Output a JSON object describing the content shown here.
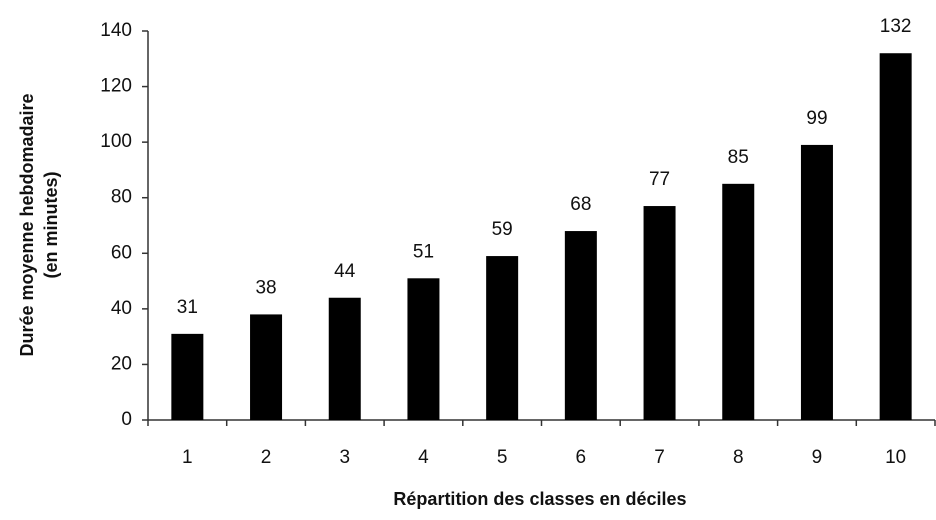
{
  "chart_data": {
    "type": "bar",
    "xlabel": "Répartition des classes en déciles",
    "ylabel": [
      "Durée moyenne hebdomadaire",
      "(en minutes)"
    ],
    "categories": [
      "1",
      "2",
      "3",
      "4",
      "5",
      "6",
      "7",
      "8",
      "9",
      "10"
    ],
    "values": [
      31,
      38,
      44,
      51,
      59,
      68,
      77,
      85,
      99,
      132
    ],
    "color": "#000000",
    "ylim": [
      0,
      140
    ],
    "yticks": [
      0,
      20,
      40,
      60,
      80,
      100,
      120,
      140
    ],
    "grid": false
  }
}
